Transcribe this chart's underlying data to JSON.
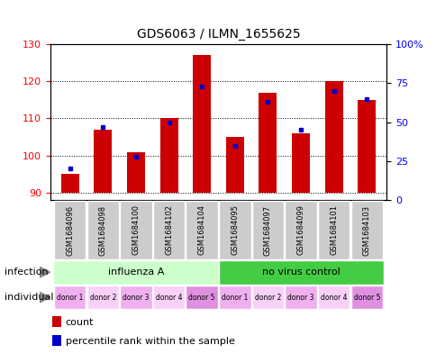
{
  "title": "GDS6063 / ILMN_1655625",
  "samples": [
    "GSM1684096",
    "GSM1684098",
    "GSM1684100",
    "GSM1684102",
    "GSM1684104",
    "GSM1684095",
    "GSM1684097",
    "GSM1684099",
    "GSM1684101",
    "GSM1684103"
  ],
  "counts": [
    95,
    107,
    101,
    110,
    127,
    105,
    117,
    106,
    120,
    115
  ],
  "percentiles": [
    20,
    47,
    28,
    50,
    73,
    35,
    63,
    45,
    70,
    65
  ],
  "ylim_left": [
    88,
    130
  ],
  "ylim_right": [
    0,
    100
  ],
  "baseline": 90,
  "yticks_left": [
    90,
    100,
    110,
    120,
    130
  ],
  "yticks_right": [
    0,
    25,
    50,
    75,
    100
  ],
  "ytick_labels_right": [
    "0",
    "25",
    "50",
    "75",
    "100%"
  ],
  "bar_color": "#cc0000",
  "dot_color": "#0000cc",
  "infection_groups": [
    {
      "label": "influenza A",
      "start": 0,
      "end": 5,
      "color": "#ccffcc"
    },
    {
      "label": "no virus control",
      "start": 5,
      "end": 10,
      "color": "#44cc44"
    }
  ],
  "individual_labels": [
    "donor 1",
    "donor 2",
    "donor 3",
    "donor 4",
    "donor 5",
    "donor 1",
    "donor 2",
    "donor 3",
    "donor 4",
    "donor 5"
  ],
  "individual_colors": [
    "#f0b0f0",
    "#f8d0f8",
    "#f0b0f0",
    "#f8d0f8",
    "#e090e0",
    "#f0b0f0",
    "#f8d0f8",
    "#f0b0f0",
    "#f8d0f8",
    "#e090e0"
  ],
  "row_label_infection": "infection",
  "row_label_individual": "individual",
  "legend_count_label": "count",
  "legend_percentile_label": "percentile rank within the sample",
  "sample_bg_color": "#cccccc",
  "plot_bg_color": "#ffffff"
}
